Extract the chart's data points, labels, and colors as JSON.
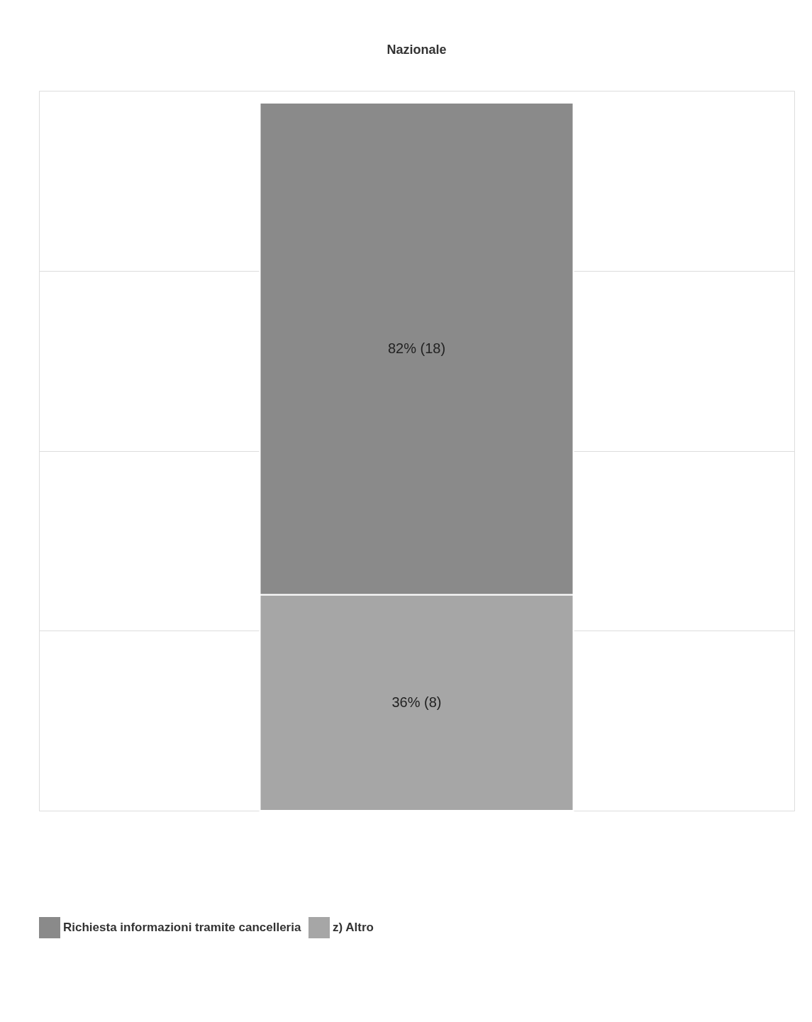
{
  "chart_data": {
    "type": "bar",
    "title": "Nazionale",
    "categories": [
      null
    ],
    "stacked": true,
    "series": [
      {
        "name": "z) Altro",
        "color": "#a6a6a6",
        "values": [
          36
        ],
        "value_labels": [
          "36% (8)"
        ]
      },
      {
        "name": "Richiesta informazioni tramite cancelleria",
        "color": "#8a8a8a",
        "values": [
          82
        ],
        "value_labels": [
          "82% (18)"
        ]
      }
    ],
    "ylim": [
      0,
      120
    ],
    "yticks": [
      {
        "value": 0,
        "label": null
      },
      {
        "value": 30,
        "label": null
      },
      {
        "value": 60,
        "label": null
      },
      {
        "value": 90,
        "label": null
      },
      {
        "value": 120,
        "label": null
      }
    ],
    "grid": "y",
    "legend": "bottom",
    "tick_labels": false
  }
}
